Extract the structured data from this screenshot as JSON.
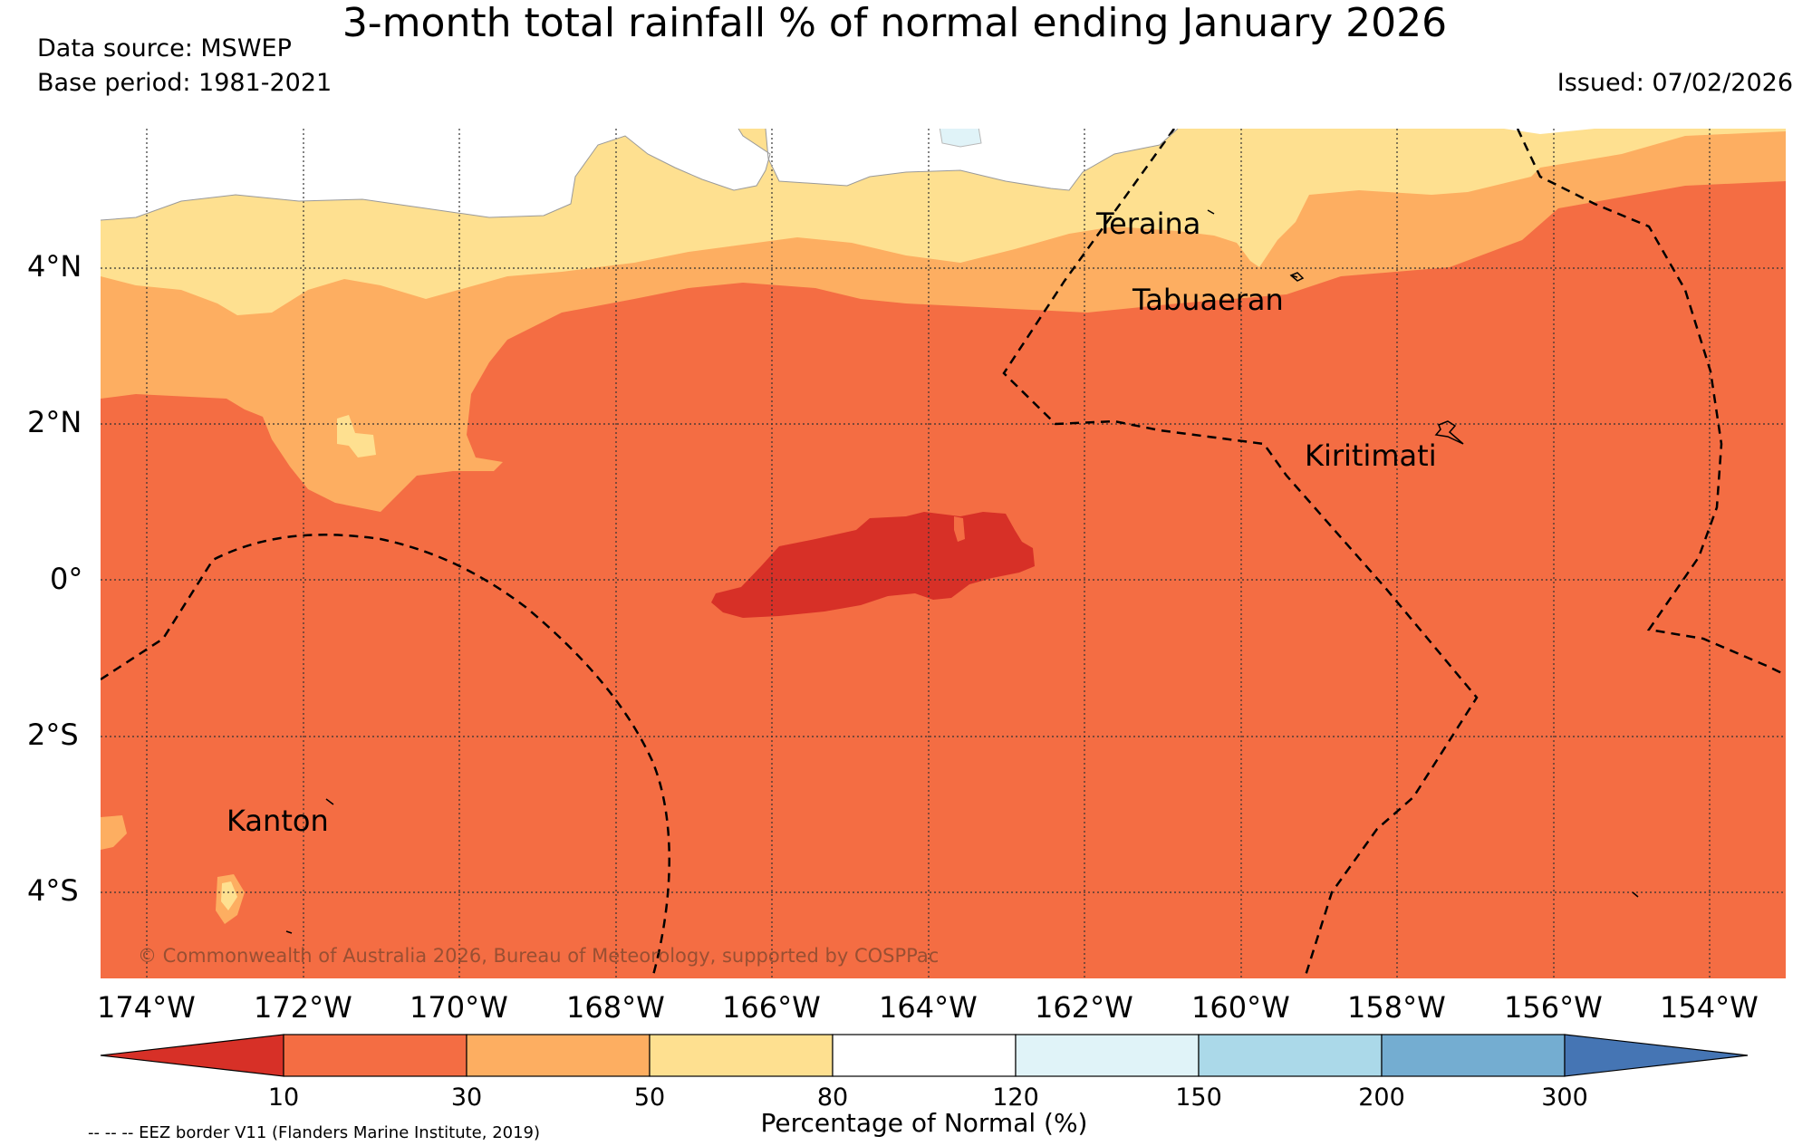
{
  "title": "3-month total rainfall % of normal ending January 2026",
  "data_source": "Data source: MSWEP",
  "base_period": "Base period: 1981-2021",
  "issued": "Issued: 07/02/2026",
  "copyright": "© Commonwealth of Australia 2026, Bureau of Meteorology, supported by COSPPac",
  "footnote": "-- -- -- EEZ border V11 (Flanders Marine Institute, 2019)",
  "lat_ticks": [
    "4°N",
    "2°N",
    "0°",
    "2°S",
    "4°S"
  ],
  "lon_ticks": [
    "174°W",
    "172°W",
    "170°W",
    "168°W",
    "166°W",
    "164°W",
    "162°W",
    "160°W",
    "158°W",
    "156°W",
    "154°W"
  ],
  "places": {
    "teraina": "Teraina",
    "tabuaeran": "Tabuaeran",
    "kiritimati": "Kiritimati",
    "kanton": "Kanton"
  },
  "colorbar": {
    "title": "Percentage of Normal (%)",
    "ticks": [
      "10",
      "30",
      "50",
      "80",
      "120",
      "150",
      "200",
      "300"
    ],
    "colors": {
      "below10": "#d73027",
      "10-30": "#f46d43",
      "30-50": "#fdae61",
      "50-80": "#fee090",
      "80-120": "#ffffff",
      "120-150": "#e0f3f8",
      "150-200": "#abd9e9",
      "200-300": "#74add1",
      "above300": "#4575b4"
    }
  }
}
